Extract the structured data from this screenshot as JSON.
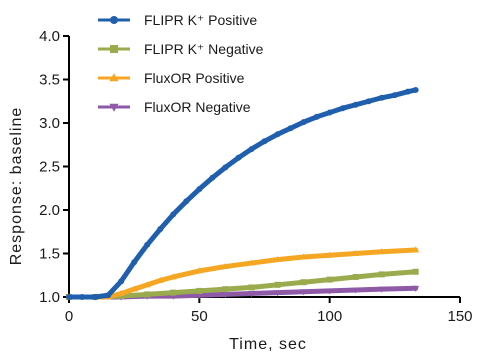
{
  "chart_data": {
    "type": "scatter",
    "title": "",
    "xlabel": "Time, sec",
    "ylabel": "Response: baseline",
    "xlim": [
      0,
      150
    ],
    "ylim": [
      1.0,
      4.0
    ],
    "xticks": [
      "0",
      "50",
      "100",
      "150"
    ],
    "yticks": [
      "1.0",
      "1.5",
      "2.0",
      "2.5",
      "3.0",
      "3.5",
      "4.0"
    ],
    "grid": false,
    "legend_position": "top-left",
    "series": [
      {
        "name": "FLIPR K⁺ Positive",
        "color": "#1f5fad",
        "marker": "circle",
        "x": [
          0,
          5,
          10,
          15,
          20,
          25,
          30,
          35,
          40,
          45,
          50,
          55,
          60,
          65,
          70,
          75,
          80,
          85,
          90,
          95,
          100,
          105,
          110,
          115,
          120,
          125,
          130,
          133
        ],
        "y": [
          1.0,
          1.0,
          1.0,
          1.02,
          1.18,
          1.4,
          1.6,
          1.78,
          1.95,
          2.1,
          2.24,
          2.37,
          2.49,
          2.6,
          2.7,
          2.79,
          2.87,
          2.94,
          3.01,
          3.07,
          3.12,
          3.17,
          3.21,
          3.25,
          3.29,
          3.32,
          3.36,
          3.38
        ]
      },
      {
        "name": "FLIPR K⁺ Negative",
        "color": "#9aab4e",
        "marker": "square",
        "x": [
          0,
          10,
          20,
          30,
          40,
          50,
          60,
          70,
          80,
          90,
          100,
          110,
          120,
          133
        ],
        "y": [
          1.0,
          1.0,
          1.01,
          1.03,
          1.05,
          1.07,
          1.09,
          1.11,
          1.14,
          1.17,
          1.2,
          1.23,
          1.26,
          1.29
        ]
      },
      {
        "name": "FluxOR Positive",
        "color": "#f5a623",
        "marker": "triangle-up",
        "x": [
          0,
          10,
          15,
          20,
          25,
          30,
          35,
          40,
          50,
          60,
          70,
          80,
          90,
          100,
          110,
          120,
          133
        ],
        "y": [
          1.0,
          1.0,
          1.0,
          1.04,
          1.09,
          1.14,
          1.19,
          1.23,
          1.3,
          1.35,
          1.39,
          1.43,
          1.46,
          1.48,
          1.5,
          1.52,
          1.54
        ]
      },
      {
        "name": "FluxOR Negative",
        "color": "#8e5aa8",
        "marker": "triangle-down",
        "x": [
          0,
          10,
          20,
          30,
          40,
          50,
          60,
          70,
          80,
          90,
          100,
          110,
          120,
          133
        ],
        "y": [
          1.0,
          1.0,
          1.0,
          1.01,
          1.01,
          1.02,
          1.03,
          1.04,
          1.05,
          1.06,
          1.07,
          1.08,
          1.09,
          1.1
        ]
      }
    ]
  }
}
